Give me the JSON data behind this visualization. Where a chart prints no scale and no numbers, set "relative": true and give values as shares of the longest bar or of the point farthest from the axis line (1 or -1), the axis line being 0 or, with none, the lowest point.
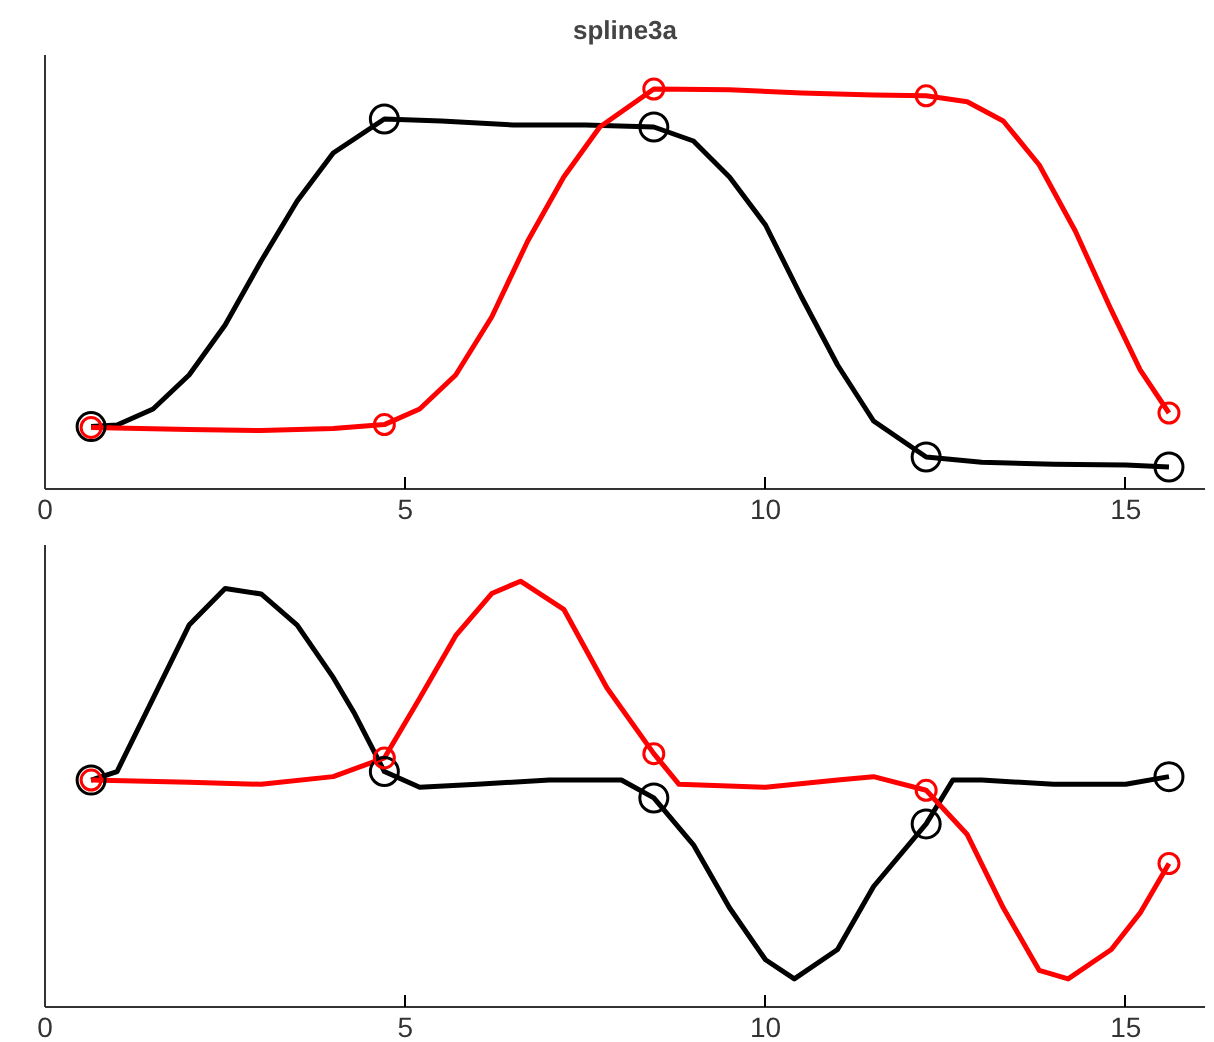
{
  "chart_data": [
    {
      "type": "line",
      "title": "spline3a",
      "relative": true,
      "xlim": [
        0,
        16.1
      ],
      "xticks": [
        0,
        5,
        10,
        15
      ],
      "tick_labels": "x",
      "grid": false,
      "series": [
        {
          "color": "#000000",
          "x": [
            0.64,
            1.0,
            1.5,
            2.0,
            2.5,
            3.0,
            3.5,
            4.0,
            4.71,
            5.5,
            6.5,
            7.5,
            8.45,
            9.0,
            9.5,
            10.0,
            10.5,
            11.0,
            11.5,
            12.23,
            13,
            14,
            15,
            15.6
          ],
          "values": [
            0.156,
            0.16,
            0.2,
            0.285,
            0.41,
            0.57,
            0.72,
            0.84,
            0.925,
            0.92,
            0.91,
            0.91,
            0.905,
            0.87,
            0.78,
            0.66,
            0.48,
            0.31,
            0.17,
            0.08,
            0.067,
            0.062,
            0.06,
            0.055
          ]
        },
        {
          "color": "#ff0000",
          "x": [
            0.64,
            2,
            3,
            4,
            4.71,
            5.2,
            5.7,
            6.2,
            6.7,
            7.2,
            7.7,
            8.45,
            9.5,
            10.5,
            11.5,
            12.23,
            12.8,
            13.3,
            13.8,
            14.3,
            14.8,
            15.2,
            15.6
          ],
          "values": [
            0.154,
            0.149,
            0.146,
            0.151,
            0.161,
            0.2,
            0.285,
            0.43,
            0.62,
            0.78,
            0.905,
            1,
            0.998,
            0.99,
            0.985,
            0.983,
            0.968,
            0.92,
            0.81,
            0.645,
            0.447,
            0.298,
            0.19
          ]
        },
        {
          "type": "scatter",
          "marker": "circle",
          "color": "#000000",
          "x": [
            0.64,
            4.71,
            8.45,
            12.23,
            15.6
          ],
          "values": [
            0.156,
            0.925,
            0.905,
            0.08,
            0.055
          ]
        },
        {
          "type": "scatter",
          "marker": "circle",
          "color": "#ff0000",
          "x": [
            0.64,
            4.71,
            8.45,
            12.23,
            15.6
          ],
          "values": [
            0.154,
            0.161,
            1,
            0.983,
            0.19
          ]
        }
      ]
    },
    {
      "type": "line",
      "relative": true,
      "xlim": [
        0,
        16.1
      ],
      "xticks": [
        0,
        5,
        10,
        15
      ],
      "tick_labels": "x",
      "grid": false,
      "series": [
        {
          "color": "#000000",
          "x": [
            0.64,
            1.0,
            1.5,
            2.0,
            2.5,
            3.0,
            3.5,
            4.0,
            4.3,
            4.71,
            5.2,
            6,
            7,
            8,
            8.45,
            9,
            9.5,
            10,
            10.4,
            11,
            11.5,
            12.23,
            12.6,
            13,
            14,
            15,
            15.6
          ],
          "values": [
            0.533,
            0.553,
            0.725,
            0.897,
            0.983,
            0.97,
            0.897,
            0.774,
            0.688,
            0.553,
            0.516,
            0.523,
            0.533,
            0.533,
            0.491,
            0.381,
            0.233,
            0.111,
            0.066,
            0.135,
            0.283,
            0.43,
            0.533,
            0.533,
            0.523,
            0.523,
            0.541
          ]
        },
        {
          "color": "#ff0000",
          "x": [
            0.64,
            2,
            3,
            4,
            4.71,
            5.2,
            5.7,
            6.2,
            6.6,
            7.2,
            7.8,
            8.45,
            8.8,
            10,
            11,
            11.5,
            12.23,
            12.8,
            13.3,
            13.8,
            14.2,
            14.8,
            15.2,
            15.6
          ],
          "values": [
            0.533,
            0.528,
            0.523,
            0.541,
            0.585,
            0.725,
            0.872,
            0.971,
            1,
            0.934,
            0.749,
            0.595,
            0.523,
            0.516,
            0.533,
            0.541,
            0.509,
            0.405,
            0.233,
            0.086,
            0.066,
            0.135,
            0.221,
            0.337
          ]
        },
        {
          "type": "scatter",
          "marker": "circle",
          "color": "#000000",
          "x": [
            0.64,
            4.71,
            8.45,
            12.23,
            15.6
          ],
          "values": [
            0.533,
            0.553,
            0.491,
            0.43,
            0.541
          ]
        },
        {
          "type": "scatter",
          "marker": "circle",
          "color": "#ff0000",
          "x": [
            0.64,
            4.71,
            8.45,
            12.23,
            15.6
          ],
          "values": [
            0.533,
            0.585,
            0.595,
            0.509,
            0.337
          ]
        }
      ]
    }
  ]
}
